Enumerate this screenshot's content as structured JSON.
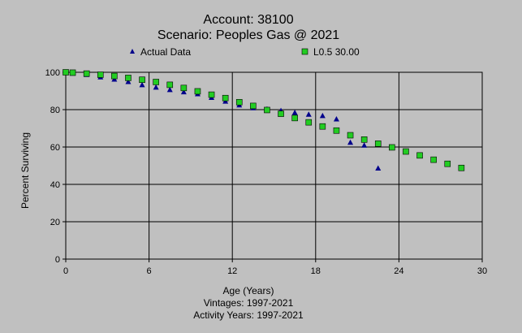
{
  "chart_data": {
    "type": "scatter",
    "title": "Account: 38100",
    "subtitle": "Scenario: Peoples Gas @ 2021",
    "xlabel": "Age (Years)",
    "ylabel": "Percent Surviving",
    "footer_lines": [
      "Vintages: 1997-2021",
      "Activity Years: 1997-2021"
    ],
    "xlim": [
      0,
      30
    ],
    "ylim": [
      0,
      100
    ],
    "xticks": [
      0,
      6,
      12,
      18,
      24,
      30
    ],
    "yticks": [
      0,
      20,
      40,
      60,
      80,
      100
    ],
    "grid": true,
    "legend_position": "top",
    "series": [
      {
        "name": "Actual Data",
        "marker": "triangle",
        "color": "#00008b",
        "x": [
          0,
          0.5,
          1.5,
          2.5,
          3.5,
          4.5,
          5.5,
          6.5,
          7.5,
          8.5,
          9.5,
          10.5,
          11.5,
          12.5,
          13.5,
          14.5,
          15.5,
          16.5,
          17.5,
          18.5,
          19.5,
          20.5,
          21.5,
          22.5
        ],
        "y": [
          100,
          99.5,
          98.8,
          97.5,
          96.3,
          95,
          93.3,
          92,
          90.7,
          89.5,
          88.5,
          86.5,
          84.5,
          82.5,
          81,
          80.3,
          79.5,
          78.5,
          77.5,
          76.8,
          75,
          62.5,
          61,
          48.7
        ]
      },
      {
        "name": "L0.5 30.00",
        "marker": "square",
        "color": "#22cc22",
        "x": [
          0,
          0.5,
          1.5,
          2.5,
          3.5,
          4.5,
          5.5,
          6.5,
          7.5,
          8.5,
          9.5,
          10.5,
          11.5,
          12.5,
          13.5,
          14.5,
          15.5,
          16.5,
          17.5,
          18.5,
          19.5,
          20.5,
          21.5,
          22.5,
          23.5,
          24.5,
          25.5,
          26.5,
          27.5,
          28.5
        ],
        "y": [
          100,
          99.8,
          99.3,
          98.7,
          98,
          97,
          96,
          94.8,
          93.3,
          91.6,
          89.8,
          88,
          86.2,
          84,
          82,
          79.8,
          77.8,
          75.5,
          73.2,
          71,
          68.8,
          66.3,
          64,
          61.8,
          59.8,
          57.6,
          55.5,
          53.2,
          51,
          48.8
        ]
      }
    ]
  }
}
